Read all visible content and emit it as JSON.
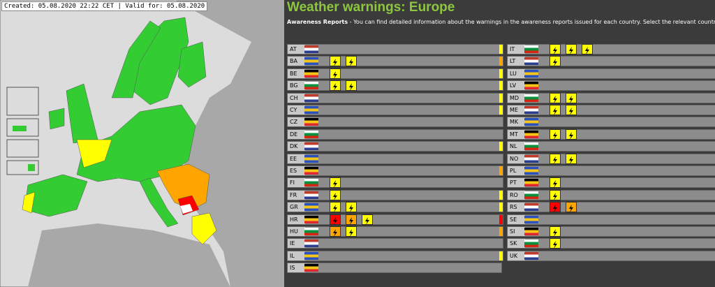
{
  "header": {
    "created": "Created: 05.08.2020 22:22 CET | Valid for: 05.08.2020"
  },
  "title": "Weather warnings: Europe",
  "intro": {
    "strong": "Awareness Reports",
    "text": " - You can find detailed information about the warnings in the awareness reports issued for each country. Select the relevant country"
  },
  "columns": [
    [
      {
        "code": "AT",
        "level": "#ffff00",
        "icons": []
      },
      {
        "code": "BA",
        "level": "#ffa500",
        "icons": [
          "#ffff00",
          "#ffff00"
        ]
      },
      {
        "code": "BE",
        "level": "#ffff00",
        "icons": [
          "#ffff00"
        ]
      },
      {
        "code": "BG",
        "level": "#ffff00",
        "icons": [
          "#ffff00",
          "#ffff00"
        ]
      },
      {
        "code": "CH",
        "level": "#ffff00",
        "icons": []
      },
      {
        "code": "CY",
        "level": "#ffff00",
        "icons": []
      },
      {
        "code": "CZ",
        "level": null,
        "icons": []
      },
      {
        "code": "DE",
        "level": null,
        "icons": []
      },
      {
        "code": "DK",
        "level": "#ffff00",
        "icons": []
      },
      {
        "code": "EE",
        "level": null,
        "icons": []
      },
      {
        "code": "ES",
        "level": "#ffa500",
        "icons": []
      },
      {
        "code": "FI",
        "level": null,
        "icons": [
          "#ffff00"
        ]
      },
      {
        "code": "FR",
        "level": "#ffff00",
        "icons": [
          "#ffff00"
        ]
      },
      {
        "code": "GR",
        "level": "#ffff00",
        "icons": [
          "#ffff00",
          "#ffff00"
        ]
      },
      {
        "code": "HR",
        "level": "#ff0000",
        "icons": [
          "#ff0000",
          "#ffa500",
          "#ffff00"
        ]
      },
      {
        "code": "HU",
        "level": "#ffa500",
        "icons": [
          "#ffa500",
          "#ffff00"
        ]
      },
      {
        "code": "IE",
        "level": null,
        "icons": []
      },
      {
        "code": "IL",
        "level": "#ffff00",
        "icons": []
      },
      {
        "code": "IS",
        "level": null,
        "icons": []
      }
    ],
    [
      {
        "code": "IT",
        "level": null,
        "icons": [
          "#ffff00",
          "#ffff00",
          "#ffff00"
        ]
      },
      {
        "code": "LT",
        "level": null,
        "icons": [
          "#ffff00"
        ]
      },
      {
        "code": "LU",
        "level": null,
        "icons": []
      },
      {
        "code": "LV",
        "level": null,
        "icons": []
      },
      {
        "code": "MD",
        "level": null,
        "icons": [
          "#ffff00",
          "#ffff00"
        ]
      },
      {
        "code": "ME",
        "level": null,
        "icons": [
          "#ffff00",
          "#ffff00"
        ]
      },
      {
        "code": "MK",
        "level": null,
        "icons": []
      },
      {
        "code": "MT",
        "level": null,
        "icons": [
          "#ffff00",
          "#ffff00"
        ]
      },
      {
        "code": "NL",
        "level": null,
        "icons": []
      },
      {
        "code": "NO",
        "level": null,
        "icons": [
          "#ffff00",
          "#ffff00"
        ]
      },
      {
        "code": "PL",
        "level": null,
        "icons": []
      },
      {
        "code": "PT",
        "level": null,
        "icons": [
          "#ffff00"
        ]
      },
      {
        "code": "RO",
        "level": null,
        "icons": [
          "#ffff00"
        ]
      },
      {
        "code": "RS",
        "level": null,
        "icons": [
          "#ff0000",
          "#ffa500"
        ]
      },
      {
        "code": "SE",
        "level": null,
        "icons": []
      },
      {
        "code": "SI",
        "level": null,
        "icons": [
          "#ffff00"
        ]
      },
      {
        "code": "SK",
        "level": null,
        "icons": [
          "#ffff00"
        ]
      },
      {
        "code": "UK",
        "level": null,
        "icons": []
      }
    ]
  ]
}
